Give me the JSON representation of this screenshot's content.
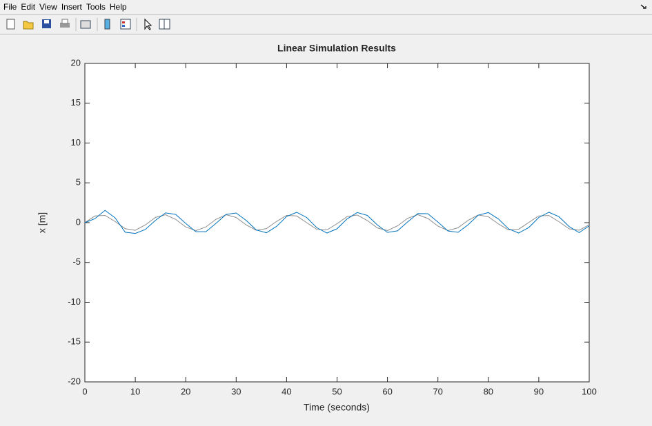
{
  "menu": [
    "File",
    "Edit",
    "View",
    "Insert",
    "Tools",
    "Help"
  ],
  "chart_data": {
    "type": "line",
    "title": "Linear Simulation Results",
    "xlabel": "Time (seconds)",
    "ylabel": "x [m]",
    "x": [
      0,
      2,
      4,
      6,
      8,
      10,
      12,
      14,
      16,
      18,
      20,
      22,
      24,
      26,
      28,
      30,
      32,
      34,
      36,
      38,
      40,
      42,
      44,
      46,
      48,
      50,
      52,
      54,
      56,
      58,
      60,
      62,
      64,
      66,
      68,
      70,
      72,
      74,
      76,
      78,
      80,
      82,
      84,
      86,
      88,
      90,
      92,
      94,
      96,
      98,
      100
    ],
    "series": [
      {
        "color": "#8c8c8c",
        "values": [
          0,
          0.84,
          0.91,
          0.14,
          -0.76,
          -0.96,
          -0.28,
          0.66,
          0.99,
          0.41,
          -0.54,
          -1.0,
          -0.54,
          0.42,
          0.99,
          0.65,
          -0.29,
          -0.96,
          -0.75,
          0.15,
          0.91,
          0.84,
          -0.01,
          -0.85,
          -0.91,
          -0.13,
          0.76,
          0.96,
          0.27,
          -0.66,
          -0.99,
          -0.4,
          0.55,
          1.0,
          0.53,
          -0.43,
          -0.99,
          -0.64,
          0.3,
          0.96,
          0.75,
          -0.16,
          -0.92,
          -0.83,
          0.02,
          0.85,
          0.9,
          0.12,
          -0.77,
          -0.95,
          -0.26
        ]
      },
      {
        "color": "#0072bd",
        "values": [
          0,
          0.5,
          1.55,
          0.6,
          -1.2,
          -1.35,
          -0.85,
          0.29,
          1.22,
          1.04,
          -0.1,
          -1.14,
          -1.14,
          -0.09,
          1.04,
          1.21,
          0.27,
          -0.92,
          -1.27,
          -0.47,
          0.78,
          1.3,
          0.64,
          -0.64,
          -1.3,
          -0.77,
          0.47,
          1.27,
          0.91,
          -0.29,
          -1.22,
          -1.03,
          0.1,
          1.14,
          1.13,
          0.08,
          -1.05,
          -1.21,
          -0.26,
          0.94,
          1.27,
          0.46,
          -0.78,
          -1.3,
          -0.62,
          0.65,
          1.3,
          0.75,
          -0.48,
          -1.25,
          -0.4
        ]
      }
    ],
    "xlim": [
      0,
      100
    ],
    "ylim": [
      -20,
      20
    ],
    "xticks": [
      0,
      10,
      20,
      30,
      40,
      50,
      60,
      70,
      80,
      90,
      100
    ],
    "yticks": [
      -20,
      -15,
      -10,
      -5,
      0,
      5,
      10,
      15,
      20
    ]
  }
}
